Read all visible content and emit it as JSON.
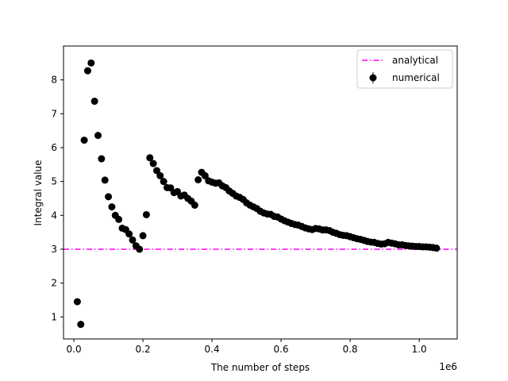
{
  "chart_data": {
    "type": "scatter",
    "title": "",
    "xlabel": "The number of steps",
    "ylabel": "Integral value",
    "x_offset_text": "1e6",
    "xlim": [
      -0.03,
      1.11
    ],
    "ylim": [
      0.35,
      9.0
    ],
    "xticks": [
      0.0,
      0.2,
      0.4,
      0.6,
      0.8,
      1.0
    ],
    "xtick_labels": [
      "0.0",
      "0.2",
      "0.4",
      "0.6",
      "0.8",
      "1.0"
    ],
    "yticks": [
      1,
      2,
      3,
      4,
      5,
      6,
      7,
      8
    ],
    "ytick_labels": [
      "1",
      "2",
      "3",
      "4",
      "5",
      "6",
      "7",
      "8"
    ],
    "grid": false,
    "legend_position": "top-right",
    "colors": {
      "analytical": "#ff00ff",
      "numerical": "#000000"
    },
    "series": [
      {
        "name": "analytical",
        "kind": "hline",
        "linestyle": "dashdot",
        "y": 3.0
      },
      {
        "name": "numerical",
        "kind": "errorbar-points",
        "x": [
          0.01,
          0.02,
          0.03,
          0.04,
          0.05,
          0.06,
          0.07,
          0.08,
          0.09,
          0.1,
          0.11,
          0.12,
          0.13,
          0.14,
          0.15,
          0.16,
          0.17,
          0.18,
          0.19,
          0.2,
          0.21,
          0.22,
          0.23,
          0.24,
          0.25,
          0.26,
          0.27,
          0.28,
          0.29,
          0.3,
          0.31,
          0.32,
          0.33,
          0.34,
          0.35,
          0.36,
          0.37,
          0.38,
          0.39,
          0.4,
          0.41,
          0.42,
          0.43,
          0.44,
          0.45,
          0.46,
          0.47,
          0.48,
          0.49,
          0.5,
          0.51,
          0.52,
          0.53,
          0.54,
          0.55,
          0.56,
          0.57,
          0.58,
          0.59,
          0.6,
          0.61,
          0.62,
          0.63,
          0.64,
          0.65,
          0.66,
          0.67,
          0.68,
          0.69,
          0.7,
          0.71,
          0.72,
          0.73,
          0.74,
          0.75,
          0.76,
          0.77,
          0.78,
          0.79,
          0.8,
          0.81,
          0.82,
          0.83,
          0.84,
          0.85,
          0.86,
          0.87,
          0.88,
          0.89,
          0.9,
          0.91,
          0.92,
          0.93,
          0.94,
          0.95,
          0.96,
          0.97,
          0.98,
          0.99,
          1.0,
          1.01,
          1.02,
          1.03,
          1.04,
          1.05
        ],
        "y": [
          1.45,
          0.78,
          6.22,
          8.27,
          8.5,
          7.37,
          6.36,
          5.67,
          5.04,
          4.55,
          4.25,
          4.0,
          3.88,
          3.62,
          3.58,
          3.45,
          3.27,
          3.1,
          3.0,
          3.4,
          4.02,
          5.7,
          5.53,
          5.32,
          5.17,
          5.0,
          4.82,
          4.81,
          4.67,
          4.7,
          4.57,
          4.6,
          4.5,
          4.42,
          4.3,
          5.05,
          5.27,
          5.17,
          5.02,
          4.98,
          4.95,
          4.96,
          4.87,
          4.82,
          4.72,
          4.65,
          4.57,
          4.53,
          4.47,
          4.37,
          4.3,
          4.25,
          4.2,
          4.12,
          4.07,
          4.04,
          4.03,
          3.97,
          3.95,
          3.89,
          3.84,
          3.8,
          3.76,
          3.73,
          3.71,
          3.67,
          3.63,
          3.6,
          3.58,
          3.61,
          3.6,
          3.57,
          3.57,
          3.55,
          3.5,
          3.47,
          3.43,
          3.41,
          3.4,
          3.37,
          3.34,
          3.31,
          3.29,
          3.26,
          3.23,
          3.21,
          3.2,
          3.17,
          3.15,
          3.16,
          3.2,
          3.18,
          3.16,
          3.13,
          3.13,
          3.11,
          3.1,
          3.09,
          3.08,
          3.08,
          3.07,
          3.07,
          3.06,
          3.05,
          3.03
        ]
      }
    ]
  }
}
